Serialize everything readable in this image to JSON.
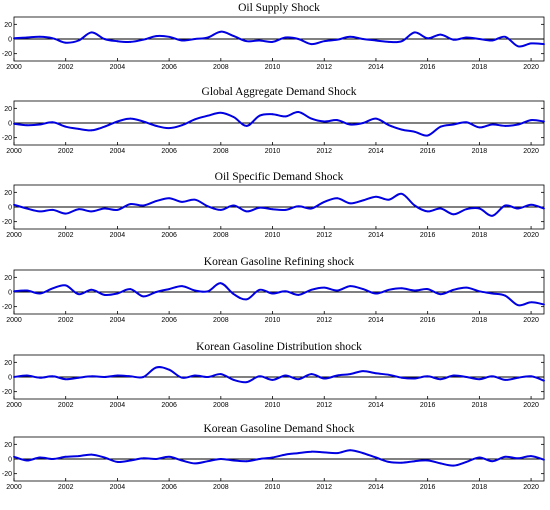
{
  "chart_data": [
    {
      "type": "line",
      "title": "Oil Supply Shock",
      "ylim": [
        -30,
        30
      ],
      "yticks": [
        20,
        0,
        -20
      ],
      "xticks": [
        "2000",
        "2002",
        "2004",
        "2006",
        "2008",
        "2010",
        "2012",
        "2014",
        "2016",
        "2018",
        "2020"
      ],
      "xrange": [
        2000,
        2020.5
      ],
      "grid": false,
      "color": "#0000e0",
      "zero_line": true,
      "x": [
        2000,
        2000.5,
        2001,
        2001.5,
        2002,
        2002.5,
        2003,
        2003.5,
        2004,
        2004.5,
        2005,
        2005.5,
        2006,
        2006.5,
        2007,
        2007.5,
        2008,
        2008.5,
        2009,
        2009.5,
        2010,
        2010.5,
        2011,
        2011.5,
        2012,
        2012.5,
        2013,
        2013.5,
        2014,
        2014.5,
        2015,
        2015.5,
        2016,
        2016.5,
        2017,
        2017.5,
        2018,
        2018.5,
        2019,
        2019.5,
        2020,
        2020.5
      ],
      "y": [
        1,
        2,
        3,
        1,
        -5,
        -2,
        9,
        0,
        -3,
        -4,
        -1,
        4,
        3,
        -2,
        0,
        2,
        10,
        4,
        -3,
        -2,
        -4,
        2,
        0,
        -7,
        -3,
        -1,
        3,
        0,
        -2,
        -4,
        -3,
        9,
        1,
        6,
        -1,
        2,
        0,
        -2,
        3,
        -10,
        -6,
        -7
      ]
    },
    {
      "type": "line",
      "title": "Global Aggregate Demand Shock",
      "ylim": [
        -30,
        30
      ],
      "yticks": [
        20,
        0,
        -20
      ],
      "xticks": [
        "2000",
        "2002",
        "2004",
        "2006",
        "2008",
        "2010",
        "2012",
        "2014",
        "2016",
        "2018",
        "2020"
      ],
      "xrange": [
        2000,
        2020.5
      ],
      "grid": false,
      "color": "#0000e0",
      "zero_line": true,
      "x": [
        2000,
        2000.5,
        2001,
        2001.5,
        2002,
        2002.5,
        2003,
        2003.5,
        2004,
        2004.5,
        2005,
        2005.5,
        2006,
        2006.5,
        2007,
        2007.5,
        2008,
        2008.5,
        2009,
        2009.5,
        2010,
        2010.5,
        2011,
        2011.5,
        2012,
        2012.5,
        2013,
        2013.5,
        2014,
        2014.5,
        2015,
        2015.5,
        2016,
        2016.5,
        2017,
        2017.5,
        2018,
        2018.5,
        2019,
        2019.5,
        2020,
        2020.5
      ],
      "y": [
        -1,
        -3,
        -2,
        1,
        -5,
        -8,
        -10,
        -5,
        2,
        6,
        2,
        -4,
        -7,
        -3,
        5,
        10,
        14,
        8,
        -4,
        10,
        12,
        9,
        15,
        6,
        2,
        4,
        -2,
        0,
        6,
        -3,
        -9,
        -12,
        -17,
        -5,
        -2,
        1,
        -6,
        -2,
        -4,
        -2,
        4,
        2
      ]
    },
    {
      "type": "line",
      "title": "Oil Specific Demand Shock",
      "ylim": [
        -30,
        30
      ],
      "yticks": [
        20,
        0,
        -20
      ],
      "xticks": [
        "2000",
        "2002",
        "2004",
        "2006",
        "2008",
        "2010",
        "2012",
        "2014",
        "2016",
        "2018",
        "2020"
      ],
      "xrange": [
        2000,
        2020.5
      ],
      "grid": false,
      "color": "#0000e0",
      "zero_line": true,
      "x": [
        2000,
        2000.5,
        2001,
        2001.5,
        2002,
        2002.5,
        2003,
        2003.5,
        2004,
        2004.5,
        2005,
        2005.5,
        2006,
        2006.5,
        2007,
        2007.5,
        2008,
        2008.5,
        2009,
        2009.5,
        2010,
        2010.5,
        2011,
        2011.5,
        2012,
        2012.5,
        2013,
        2013.5,
        2014,
        2014.5,
        2015,
        2015.5,
        2016,
        2016.5,
        2017,
        2017.5,
        2018,
        2018.5,
        2019,
        2019.5,
        2020,
        2020.5
      ],
      "y": [
        3,
        -2,
        -6,
        -4,
        -9,
        -3,
        -6,
        -2,
        -4,
        4,
        2,
        8,
        12,
        7,
        10,
        1,
        -4,
        2,
        -6,
        -1,
        -3,
        -4,
        1,
        -2,
        7,
        12,
        5,
        9,
        14,
        10,
        18,
        2,
        -6,
        -2,
        -10,
        -3,
        -2,
        -12,
        2,
        -2,
        3,
        -2
      ]
    },
    {
      "type": "line",
      "title": "Korean Gasoline Refining shock",
      "ylim": [
        -30,
        30
      ],
      "yticks": [
        20,
        0,
        -20
      ],
      "xticks": [
        "2000",
        "2002",
        "2004",
        "2006",
        "2008",
        "2010",
        "2012",
        "2014",
        "2016",
        "2018",
        "2020"
      ],
      "xrange": [
        2000,
        2020.5
      ],
      "grid": false,
      "color": "#0000e0",
      "zero_line": true,
      "x": [
        2000,
        2000.5,
        2001,
        2001.5,
        2002,
        2002.5,
        2003,
        2003.5,
        2004,
        2004.5,
        2005,
        2005.5,
        2006,
        2006.5,
        2007,
        2007.5,
        2008,
        2008.5,
        2009,
        2009.5,
        2010,
        2010.5,
        2011,
        2011.5,
        2012,
        2012.5,
        2013,
        2013.5,
        2014,
        2014.5,
        2015,
        2015.5,
        2016,
        2016.5,
        2017,
        2017.5,
        2018,
        2018.5,
        2019,
        2019.5,
        2020,
        2020.5
      ],
      "y": [
        1,
        2,
        -2,
        5,
        9,
        -3,
        3,
        -4,
        -2,
        4,
        -6,
        0,
        4,
        8,
        2,
        1,
        12,
        -3,
        -10,
        3,
        -2,
        1,
        -4,
        3,
        6,
        2,
        8,
        4,
        -2,
        3,
        5,
        2,
        4,
        -3,
        3,
        6,
        1,
        -2,
        -5,
        -18,
        -14,
        -17
      ]
    },
    {
      "type": "line",
      "title": "Korean Gasoline Distribution shock",
      "ylim": [
        -30,
        30
      ],
      "yticks": [
        20,
        0,
        -20
      ],
      "xticks": [
        "2000",
        "2002",
        "2004",
        "2006",
        "2008",
        "2010",
        "2012",
        "2014",
        "2016",
        "2018",
        "2020"
      ],
      "xrange": [
        2000,
        2020.5
      ],
      "grid": false,
      "color": "#0000e0",
      "zero_line": true,
      "x": [
        2000,
        2000.5,
        2001,
        2001.5,
        2002,
        2002.5,
        2003,
        2003.5,
        2004,
        2004.5,
        2005,
        2005.5,
        2006,
        2006.5,
        2007,
        2007.5,
        2008,
        2008.5,
        2009,
        2009.5,
        2010,
        2010.5,
        2011,
        2011.5,
        2012,
        2012.5,
        2013,
        2013.5,
        2014,
        2014.5,
        2015,
        2015.5,
        2016,
        2016.5,
        2017,
        2017.5,
        2018,
        2018.5,
        2019,
        2019.5,
        2020,
        2020.5
      ],
      "y": [
        0,
        2,
        -1,
        1,
        -3,
        -1,
        1,
        0,
        2,
        1,
        0,
        13,
        10,
        -1,
        2,
        0,
        4,
        -4,
        -7,
        1,
        -4,
        2,
        -3,
        4,
        -2,
        2,
        4,
        8,
        5,
        3,
        -1,
        -2,
        1,
        -3,
        2,
        0,
        -3,
        1,
        -4,
        -1,
        1,
        -5
      ]
    },
    {
      "type": "line",
      "title": "Korean Gasoline Demand Shock",
      "ylim": [
        -30,
        30
      ],
      "yticks": [
        20,
        0,
        -20
      ],
      "xticks": [
        "2000",
        "2002",
        "2004",
        "2006",
        "2008",
        "2010",
        "2012",
        "2014",
        "2016",
        "2018",
        "2020"
      ],
      "xrange": [
        2000,
        2020.5
      ],
      "grid": false,
      "color": "#0000e0",
      "zero_line": true,
      "x": [
        2000,
        2000.5,
        2001,
        2001.5,
        2002,
        2002.5,
        2003,
        2003.5,
        2004,
        2004.5,
        2005,
        2005.5,
        2006,
        2006.5,
        2007,
        2007.5,
        2008,
        2008.5,
        2009,
        2009.5,
        2010,
        2010.5,
        2011,
        2011.5,
        2012,
        2012.5,
        2013,
        2013.5,
        2014,
        2014.5,
        2015,
        2015.5,
        2016,
        2016.5,
        2017,
        2017.5,
        2018,
        2018.5,
        2019,
        2019.5,
        2020,
        2020.5
      ],
      "y": [
        3,
        -2,
        2,
        0,
        3,
        4,
        6,
        2,
        -4,
        -2,
        1,
        0,
        3,
        -2,
        -6,
        -3,
        0,
        -2,
        -3,
        0,
        2,
        6,
        8,
        10,
        9,
        8,
        12,
        8,
        2,
        -4,
        -5,
        -3,
        -2,
        -6,
        -9,
        -4,
        2,
        -3,
        3,
        1,
        4,
        -1
      ]
    }
  ]
}
